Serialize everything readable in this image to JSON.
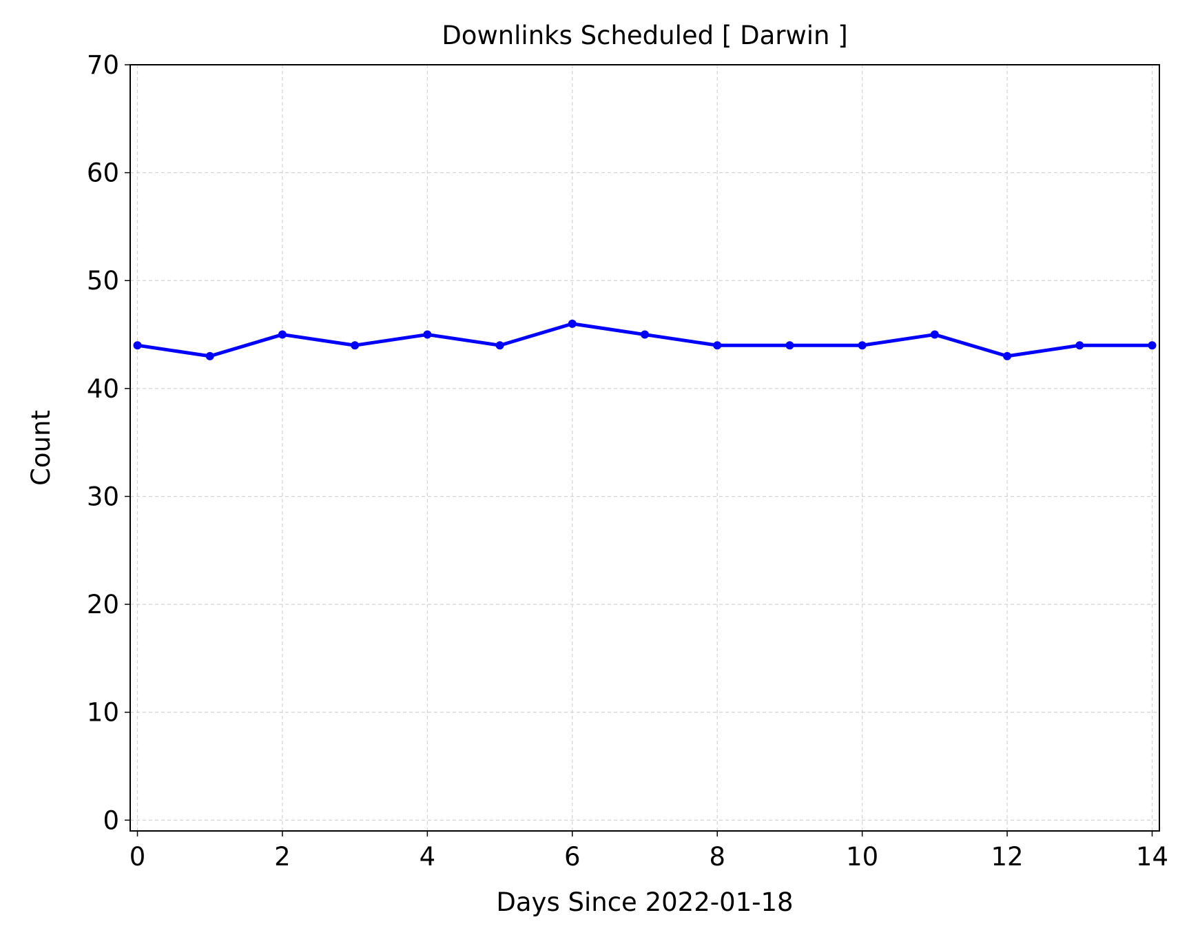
{
  "chart_data": {
    "type": "line",
    "title": "Downlinks Scheduled [ Darwin ]",
    "xlabel": "Days Since 2022-01-18",
    "ylabel": "Count",
    "xlim": [
      -0.1,
      14.1
    ],
    "ylim": [
      -1,
      70
    ],
    "xticks": [
      0,
      2,
      4,
      6,
      8,
      10,
      12,
      14
    ],
    "yticks": [
      0,
      10,
      20,
      30,
      40,
      50,
      60,
      70
    ],
    "grid": true,
    "series": [
      {
        "color": "#0000ff",
        "x": [
          0,
          1,
          2,
          3,
          4,
          5,
          6,
          7,
          8,
          9,
          10,
          11,
          12,
          13,
          14
        ],
        "y": [
          44,
          43,
          45,
          44,
          45,
          44,
          46,
          45,
          44,
          44,
          44,
          45,
          43,
          44,
          44
        ]
      }
    ]
  }
}
